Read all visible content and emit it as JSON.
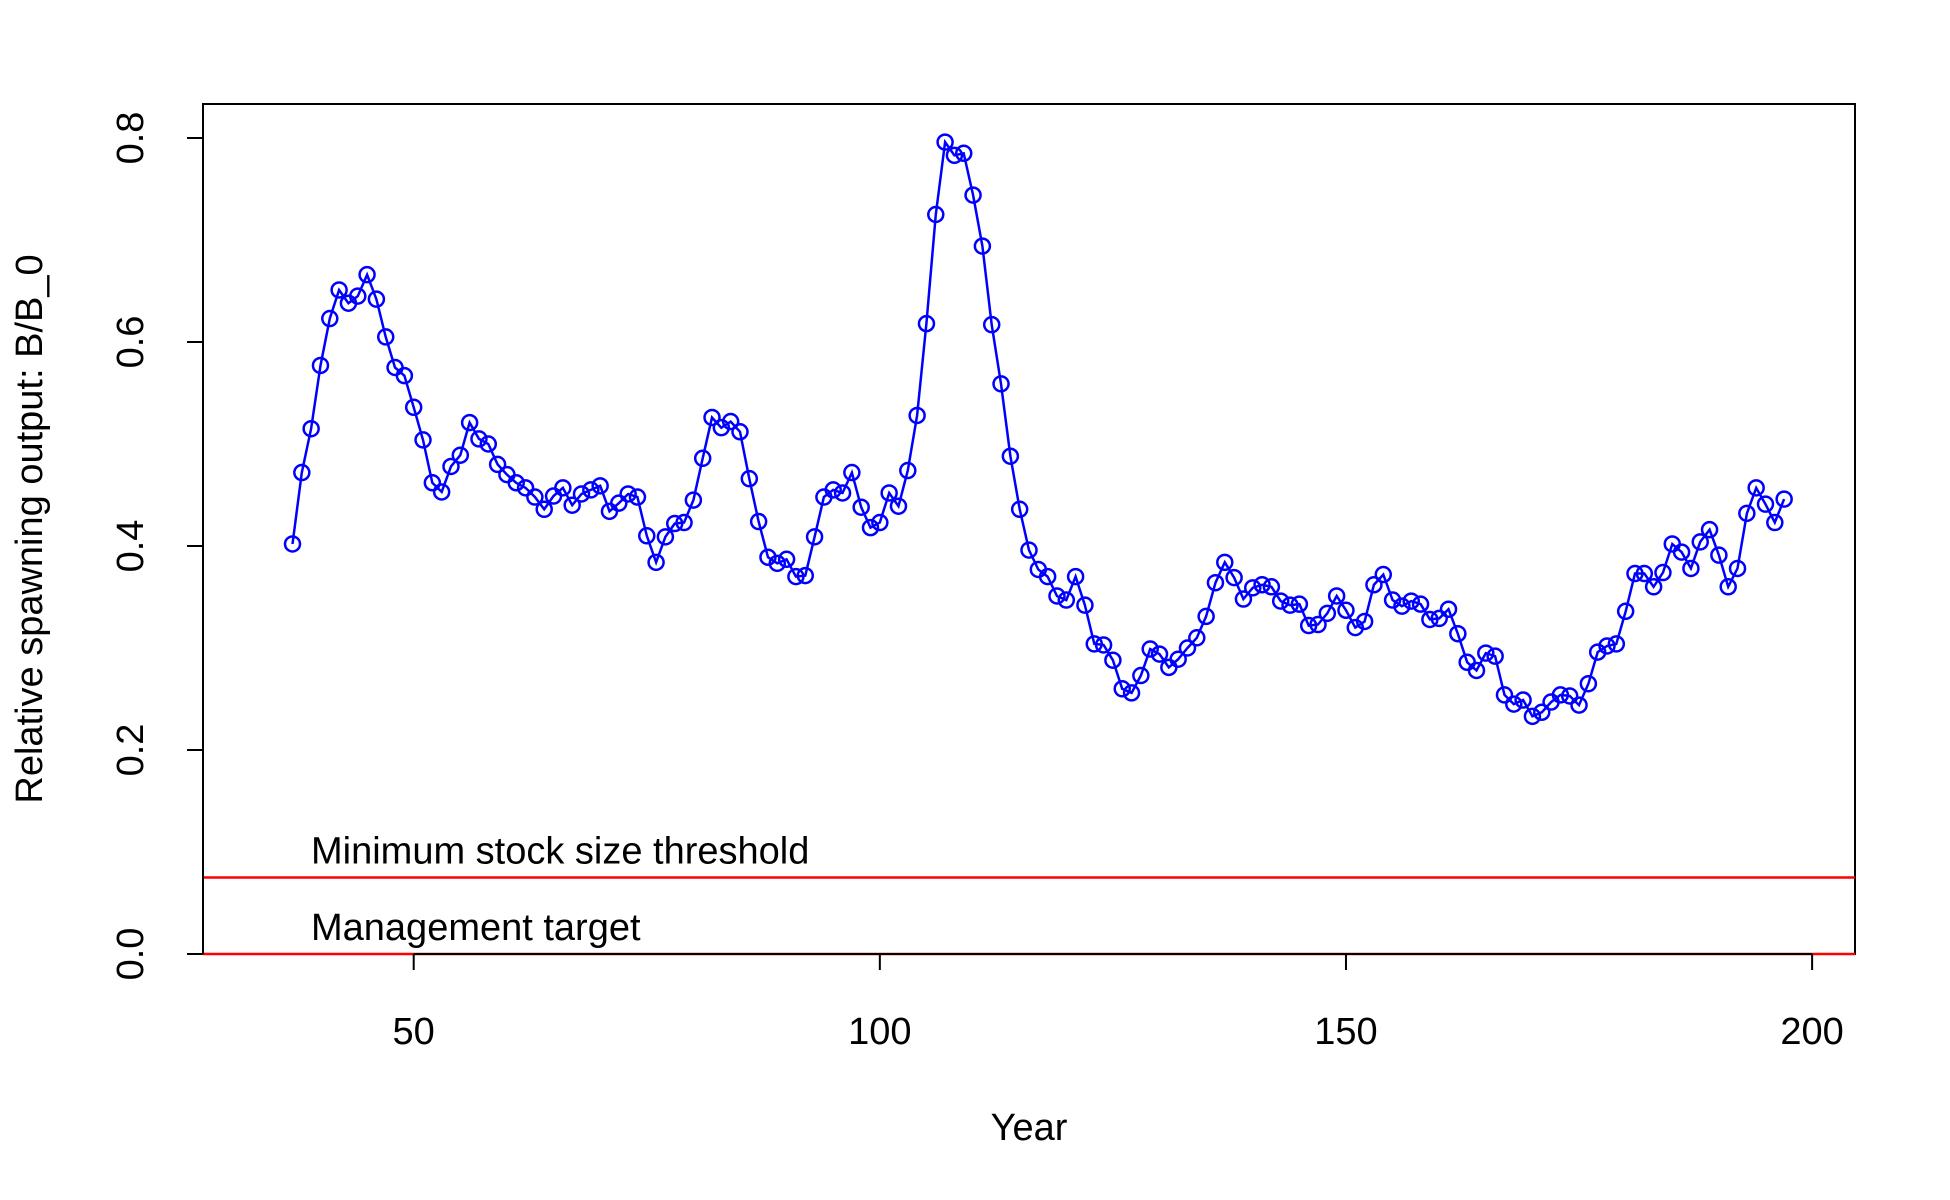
{
  "chart_data": {
    "type": "line",
    "title": "",
    "xlabel": "Year",
    "ylabel": "Relative spawning output: B/B_0",
    "xlim": [
      27.4,
      204.6
    ],
    "ylim": [
      0.0,
      0.8
    ],
    "x_ticks": [
      50,
      100,
      150,
      200
    ],
    "y_ticks": [
      0.0,
      0.2,
      0.4,
      0.6,
      0.8
    ],
    "x_tick_labels": [
      "50",
      "100",
      "150",
      "200"
    ],
    "y_tick_labels": [
      "0.0",
      "0.2",
      "0.4",
      "0.6",
      "0.8"
    ],
    "grid": false,
    "series": [
      {
        "marker": "open-circle",
        "color": "#0000ff",
        "x": [
          37,
          38,
          39,
          40,
          41,
          42,
          43,
          44,
          45,
          46,
          47,
          48,
          49,
          50,
          51,
          52,
          53,
          54,
          55,
          56,
          57,
          58,
          59,
          60,
          61,
          62,
          63,
          64,
          65,
          66,
          67,
          68,
          69,
          70,
          71,
          72,
          73,
          74,
          75,
          76,
          77,
          78,
          79,
          80,
          81,
          82,
          83,
          84,
          85,
          86,
          87,
          88,
          89,
          90,
          91,
          92,
          93,
          94,
          95,
          96,
          97,
          98,
          99,
          100,
          101,
          102,
          103,
          104,
          105,
          106,
          107,
          108,
          109,
          110,
          111,
          112,
          113,
          114,
          115,
          116,
          117,
          118,
          119,
          120,
          121,
          122,
          123,
          124,
          125,
          126,
          127,
          128,
          129,
          130,
          131,
          132,
          133,
          134,
          135,
          136,
          137,
          138,
          139,
          140,
          141,
          142,
          143,
          144,
          145,
          146,
          147,
          148,
          149,
          150,
          151,
          152,
          153,
          154,
          155,
          156,
          157,
          158,
          159,
          160,
          161,
          162,
          163,
          164,
          165,
          166,
          167,
          168,
          169,
          170,
          171,
          172,
          173,
          174,
          175,
          176,
          177,
          178,
          179,
          180,
          181,
          182,
          183,
          184,
          185,
          186,
          187,
          188,
          189,
          190,
          191,
          192,
          193,
          194,
          195,
          196,
          197
        ],
        "y": [
          0.402,
          0.472,
          0.515,
          0.577,
          0.623,
          0.651,
          0.638,
          0.645,
          0.666,
          0.642,
          0.605,
          0.575,
          0.567,
          0.536,
          0.504,
          0.462,
          0.453,
          0.478,
          0.489,
          0.521,
          0.505,
          0.5,
          0.48,
          0.47,
          0.462,
          0.457,
          0.448,
          0.436,
          0.449,
          0.457,
          0.44,
          0.451,
          0.455,
          0.459,
          0.434,
          0.442,
          0.451,
          0.448,
          0.41,
          0.384,
          0.409,
          0.422,
          0.423,
          0.445,
          0.486,
          0.526,
          0.516,
          0.522,
          0.512,
          0.466,
          0.424,
          0.389,
          0.383,
          0.387,
          0.37,
          0.371,
          0.409,
          0.448,
          0.455,
          0.452,
          0.472,
          0.438,
          0.418,
          0.423,
          0.452,
          0.439,
          0.474,
          0.528,
          0.618,
          0.725,
          0.796,
          0.783,
          0.785,
          0.744,
          0.694,
          0.617,
          0.559,
          0.488,
          0.436,
          0.396,
          0.377,
          0.37,
          0.351,
          0.347,
          0.37,
          0.342,
          0.304,
          0.303,
          0.288,
          0.26,
          0.256,
          0.273,
          0.299,
          0.294,
          0.281,
          0.289,
          0.3,
          0.31,
          0.331,
          0.364,
          0.384,
          0.369,
          0.348,
          0.359,
          0.362,
          0.36,
          0.346,
          0.342,
          0.343,
          0.322,
          0.323,
          0.334,
          0.351,
          0.337,
          0.32,
          0.326,
          0.362,
          0.372,
          0.347,
          0.341,
          0.346,
          0.343,
          0.328,
          0.329,
          0.338,
          0.314,
          0.286,
          0.278,
          0.295,
          0.292,
          0.254,
          0.245,
          0.249,
          0.233,
          0.237,
          0.247,
          0.254,
          0.253,
          0.244,
          0.265,
          0.296,
          0.302,
          0.304,
          0.336,
          0.373,
          0.373,
          0.36,
          0.374,
          0.402,
          0.394,
          0.378,
          0.404,
          0.416,
          0.391,
          0.36,
          0.378,
          0.432,
          0.457,
          0.441,
          0.423,
          0.446
        ]
      }
    ],
    "reference_lines": [
      {
        "y": 0.075,
        "label": "Minimum stock size threshold",
        "color": "#ff0000"
      },
      {
        "y": 0.0,
        "label": "Management target",
        "color": "#ff0000"
      }
    ]
  }
}
